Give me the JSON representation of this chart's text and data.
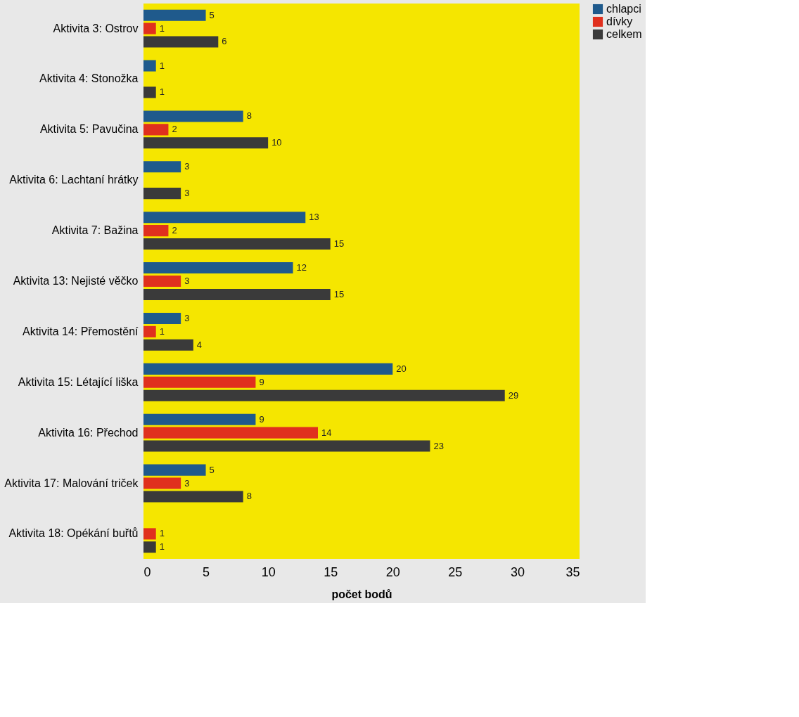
{
  "chart_data": {
    "type": "bar",
    "orientation": "horizontal",
    "xlabel": "počet bodů",
    "categories": [
      "Aktivita 3: Ostrov",
      "Aktivita 4: Stonožka",
      "Aktivita 5: Pavučina",
      "Aktivita 6: Lachtaní hrátky",
      "Aktivita 7: Bažina",
      "Aktivita 13: Nejisté věčko",
      "Aktivita 14: Přemostění",
      "Aktivita 15: Létající liška",
      "Aktivita 16: Přechod",
      "Aktivita 17: Malování triček",
      "Aktivita 18: Opékání buřtů"
    ],
    "series": [
      {
        "name": "chlapci",
        "color": "#1f5a8c",
        "values": [
          5,
          1,
          8,
          3,
          13,
          12,
          3,
          20,
          9,
          5,
          null
        ]
      },
      {
        "name": "dívky",
        "color": "#e0301e",
        "values": [
          1,
          null,
          2,
          null,
          2,
          3,
          1,
          9,
          14,
          3,
          1
        ]
      },
      {
        "name": "celkem",
        "color": "#3a3a3a",
        "values": [
          6,
          1,
          10,
          3,
          15,
          15,
          4,
          29,
          23,
          8,
          1
        ]
      }
    ],
    "xlim": [
      0,
      35
    ],
    "xticks": [
      0,
      5,
      10,
      15,
      20,
      25,
      30,
      35
    ],
    "grid": false,
    "legend": "right",
    "data_labels": true
  }
}
